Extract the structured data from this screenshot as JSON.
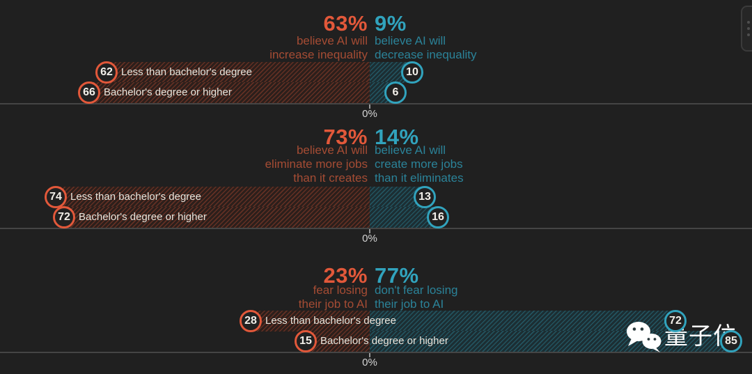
{
  "colors": {
    "background": "#202020",
    "orange": "#e2583a",
    "orange_muted": "#a54c34",
    "teal": "#31a3bd",
    "teal_muted": "#2b8399",
    "axis_line": "#454545",
    "axis_text": "#d4d4d4",
    "row_label_text": "#e9e5dc",
    "circle_fill": "#212121",
    "circle_text": "#f2efe9",
    "watermark_text": "#ffffff"
  },
  "watermark": {
    "icon": "wechat-icon",
    "text": "量子位"
  },
  "floating_widget": {
    "icon": "grip-handle-icon"
  },
  "chart_data": [
    {
      "id": "inequality",
      "type": "bar",
      "layout": "diverging-horizontal",
      "unit": "%",
      "axis": {
        "zero_label": "0%",
        "range": [
          -100,
          100
        ],
        "zero_at_center": true
      },
      "categories": [
        "Less than bachelor's degree",
        "Bachelor's degree or higher"
      ],
      "left": {
        "headline_value": "63%",
        "headline_lines": [
          "believe AI will",
          "increase inequality"
        ],
        "series_name": "believe AI will increase inequality",
        "values": [
          62,
          66
        ],
        "color": "#e2583a",
        "muted_color": "#a54c34"
      },
      "right": {
        "headline_value": "9%",
        "headline_lines": [
          "believe AI will",
          "decrease inequality"
        ],
        "series_name": "believe AI will decrease inequality",
        "values": [
          10,
          6
        ],
        "color": "#31a3bd",
        "muted_color": "#2b8399"
      }
    },
    {
      "id": "jobs",
      "type": "bar",
      "layout": "diverging-horizontal",
      "unit": "%",
      "axis": {
        "zero_label": "0%",
        "range": [
          -100,
          100
        ],
        "zero_at_center": true
      },
      "categories": [
        "Less than bachelor's degree",
        "Bachelor's degree or higher"
      ],
      "left": {
        "headline_value": "73%",
        "headline_lines": [
          "believe AI will",
          "eliminate more jobs",
          "than it creates"
        ],
        "series_name": "believe AI will eliminate more jobs than it creates",
        "values": [
          74,
          72
        ],
        "color": "#e2583a",
        "muted_color": "#a54c34"
      },
      "right": {
        "headline_value": "14%",
        "headline_lines": [
          "believe AI will",
          "create more jobs",
          "than it eliminates"
        ],
        "series_name": "believe AI will create more jobs than it eliminates",
        "values": [
          13,
          16
        ],
        "color": "#31a3bd",
        "muted_color": "#2b8399"
      }
    },
    {
      "id": "job-fear",
      "type": "bar",
      "layout": "diverging-horizontal",
      "unit": "%",
      "axis": {
        "zero_label": "0%",
        "range": [
          -100,
          100
        ],
        "zero_at_center": true
      },
      "categories": [
        "Less than bachelor's degree",
        "Bachelor's degree or higher"
      ],
      "left": {
        "headline_value": "23%",
        "headline_lines": [
          "fear losing",
          "their job to AI"
        ],
        "series_name": "fear losing their job to AI",
        "values": [
          28,
          15
        ],
        "color": "#e2583a",
        "muted_color": "#a54c34"
      },
      "right": {
        "headline_value": "77%",
        "headline_lines": [
          "don't fear losing",
          "their job to AI"
        ],
        "series_name": "don't fear losing their job to AI",
        "values": [
          72,
          85
        ],
        "color": "#31a3bd",
        "muted_color": "#2b8399"
      }
    }
  ]
}
